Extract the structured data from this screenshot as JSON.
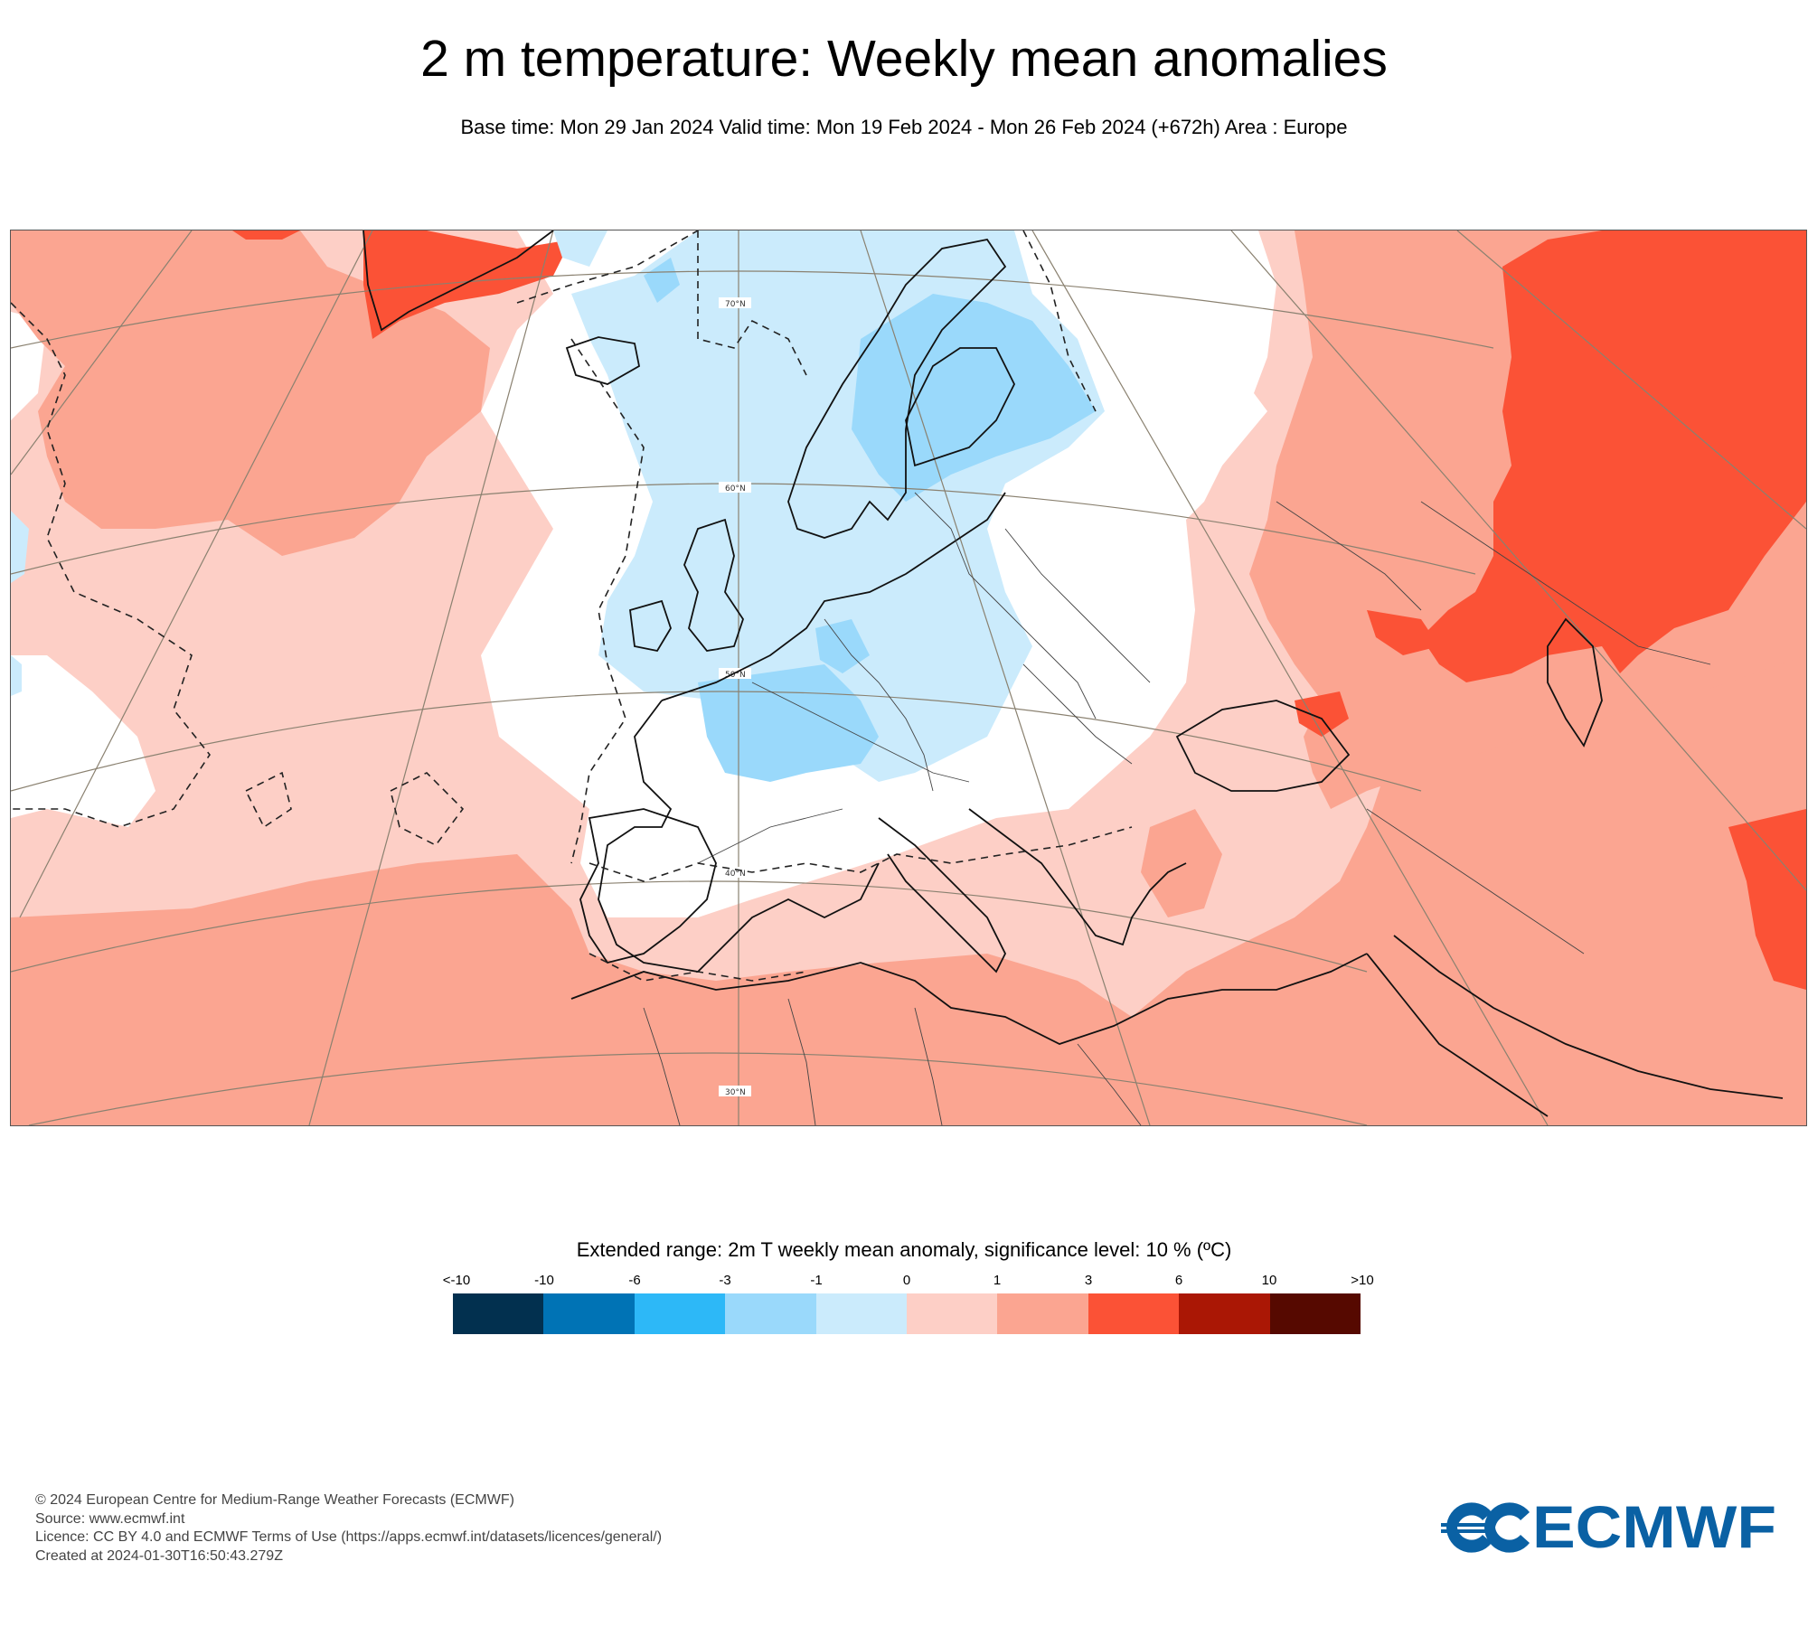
{
  "title": "2 m temperature: Weekly mean anomalies",
  "subtitle": "Base time: Mon 29 Jan 2024 Valid time: Mon 19 Feb 2024 - Mon 26 Feb 2024 (+672h) Area : Europe",
  "map": {
    "region": "Europe",
    "latitude_labels": [
      "70°N",
      "60°N",
      "50°N",
      "40°N",
      "30°N"
    ]
  },
  "legend": {
    "title": "Extended range: 2m T weekly mean anomaly, significance level: 10 % (ºC)",
    "ticks": [
      "<-10",
      "-10",
      "-6",
      "-3",
      "-1",
      "0",
      "1",
      "3",
      "6",
      "10",
      ">10"
    ],
    "colors": [
      "#02304f",
      "#0073b5",
      "#2db8f7",
      "#9ad9fb",
      "#cbebfc",
      "#fdcfc6",
      "#fba591",
      "#fb5236",
      "#aa1705",
      "#560900"
    ]
  },
  "footer": {
    "copyright": "© 2024 European Centre for Medium-Range Weather Forecasts (ECMWF)",
    "source": "Source: www.ecmwf.int",
    "licence": "Licence: CC BY 4.0 and ECMWF Terms of Use (https://apps.ecmwf.int/datasets/licences/general/)",
    "created": "Created at 2024-01-30T16:50:43.279Z"
  },
  "logo": {
    "text": "ECMWF",
    "color": "#0a61a4"
  }
}
